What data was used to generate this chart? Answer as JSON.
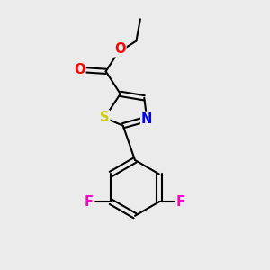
{
  "background_color": "#ebebeb",
  "bond_color": "#000000",
  "bond_width": 1.5,
  "atom_colors": {
    "S": "#cccc00",
    "N": "#0000ff",
    "O": "#ff0000",
    "F": "#ff00cc",
    "C": "#000000"
  },
  "font_size_atom": 10.5
}
